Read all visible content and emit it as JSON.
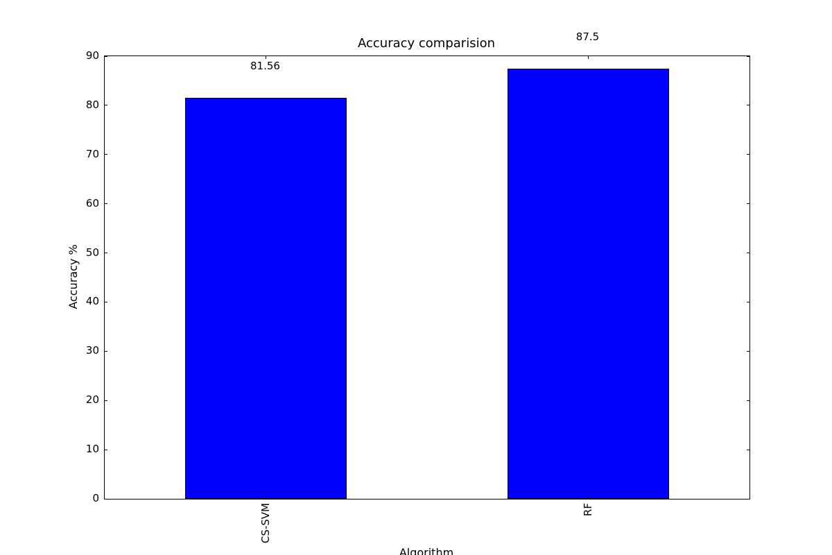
{
  "figure": {
    "background_color": "#ffffff"
  },
  "chart_data": {
    "type": "bar",
    "title": "Accuracy comparision",
    "xlabel": "Algorithm",
    "ylabel": "Accuracy %",
    "categories": [
      "CS-SVM",
      "RF"
    ],
    "values": [
      81.56,
      87.5
    ],
    "value_labels": [
      "81.56",
      "87.5"
    ],
    "ytick_labels": [
      "0",
      "10",
      "20",
      "30",
      "40",
      "50",
      "60",
      "70",
      "80",
      "90"
    ],
    "yticks": [
      0,
      10,
      20,
      30,
      40,
      50,
      60,
      70,
      80,
      90
    ],
    "ylim": [
      0,
      90
    ],
    "xlim": [
      0,
      2
    ],
    "bar_centers": [
      0.5,
      1.5
    ],
    "bar_width_units": 0.5,
    "bar_color": "#0000ff",
    "bar_edge_color": "#000000",
    "text_color": "#000000",
    "grid": false,
    "legend_position": "none",
    "tick_direction": "in",
    "xtick_label_rotation": "vertical",
    "value_label_offset_units": 5
  }
}
